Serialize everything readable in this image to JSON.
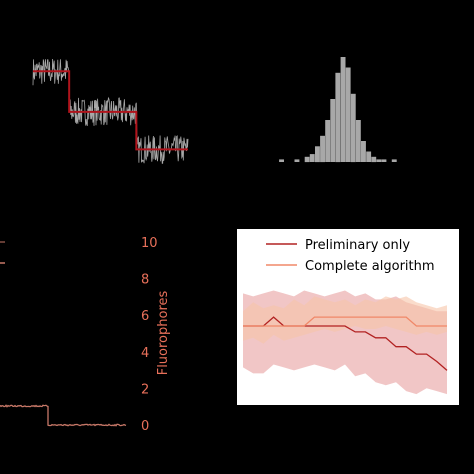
{
  "colors": {
    "background": "#000000",
    "trace": "#a8a8a8",
    "step_fit": "#b0141c",
    "histogram": "#a8a8a8",
    "fluorophore_axis": "#e8705a",
    "low_trace": "#c87868",
    "preliminary": "#b22222",
    "complete": "#f08868",
    "band_preliminary": "#e8a0a0",
    "band_complete": "#f6c4a8"
  },
  "chart_data": [
    {
      "type": "line",
      "panel": "trace-with-step-fit",
      "x_range": [
        0,
        150
      ],
      "levels": [
        {
          "x_start": 0,
          "x_end": 35,
          "y": 3.0
        },
        {
          "x_start": 35,
          "x_end": 100,
          "y": 1.7
        },
        {
          "x_start": 100,
          "x_end": 150,
          "y": 0.5
        }
      ],
      "ylim": [
        0,
        4
      ]
    },
    {
      "type": "bar",
      "panel": "histogram",
      "values": [
        0,
        1,
        0,
        0,
        1,
        0,
        2,
        3,
        6,
        10,
        16,
        24,
        34,
        40,
        36,
        26,
        16,
        8,
        4,
        2,
        1,
        1,
        0,
        1,
        0
      ]
    },
    {
      "type": "line",
      "panel": "fluorophore-trace",
      "y_label": "Fluorophores",
      "y_ticks": [
        "0",
        "2",
        "4",
        "6",
        "8",
        "10"
      ],
      "ylim": [
        0,
        10
      ],
      "segments": [
        {
          "x_start": 0,
          "x_end": 48,
          "y": 1.0
        },
        {
          "x_start": 48,
          "x_end": 126,
          "y": 0.0
        }
      ]
    },
    {
      "type": "area",
      "panel": "algorithm-comparison",
      "legend": [
        "Preliminary only",
        "Complete algorithm"
      ],
      "x": [
        0,
        1,
        2,
        3,
        4,
        5,
        6,
        7,
        8,
        9,
        10,
        11,
        12,
        13,
        14,
        15,
        16,
        17,
        18,
        19,
        20
      ],
      "ylim": [
        0,
        10
      ],
      "series": [
        {
          "name": "Preliminary only",
          "values": [
            5,
            5,
            5,
            5.6,
            5,
            5,
            5,
            5,
            5,
            5,
            5,
            4.6,
            4.6,
            4.2,
            4.2,
            3.6,
            3.6,
            3.1,
            3.1,
            2.6,
            2.0
          ],
          "lower": [
            2.2,
            1.8,
            1.8,
            2.4,
            2.2,
            2.0,
            2.2,
            2.4,
            2.2,
            2.0,
            2.4,
            1.6,
            1.8,
            1.2,
            1.0,
            1.2,
            0.6,
            0.4,
            0.8,
            0.6,
            0.4
          ],
          "upper": [
            7.2,
            7.0,
            7.2,
            7.4,
            7.2,
            7.0,
            7.4,
            7.2,
            7.0,
            7.2,
            7.4,
            7.0,
            7.2,
            6.8,
            6.8,
            7.0,
            6.6,
            6.4,
            6.2,
            6.0,
            6.0
          ]
        },
        {
          "name": "Complete algorithm",
          "values": [
            5,
            5,
            5,
            5,
            5,
            5,
            5,
            5.6,
            5.6,
            5.6,
            5.6,
            5.6,
            5.6,
            5.6,
            5.6,
            5.6,
            5.6,
            5.0,
            5.0,
            5.0,
            5.0
          ],
          "lower": [
            4.0,
            4.2,
            3.8,
            4.4,
            4.0,
            4.2,
            4.4,
            4.6,
            4.8,
            4.6,
            4.8,
            5.0,
            4.8,
            4.8,
            5.0,
            4.8,
            4.6,
            4.4,
            4.6,
            4.4,
            4.6
          ],
          "upper": [
            6.0,
            6.6,
            6.2,
            6.4,
            6.2,
            6.8,
            6.4,
            7.0,
            6.8,
            6.6,
            6.8,
            6.4,
            6.8,
            6.6,
            7.0,
            6.8,
            7.0,
            6.6,
            6.4,
            6.2,
            6.4
          ]
        }
      ]
    }
  ]
}
